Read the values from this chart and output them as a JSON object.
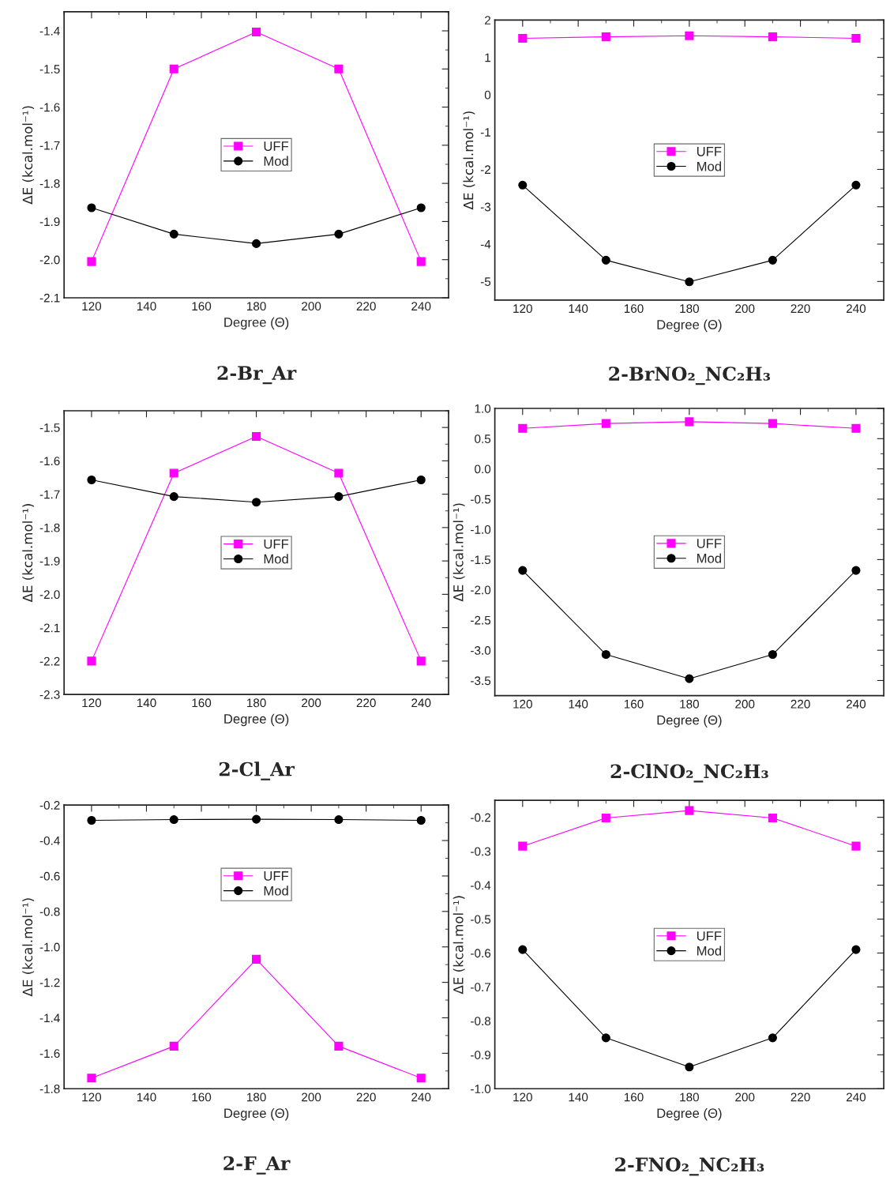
{
  "chart_data": [
    {
      "type": "line",
      "title": "2-Br_Ar",
      "xlabel": "Degree (Θ)",
      "ylabel": "ΔE (kcal.mol⁻¹)",
      "x": [
        120,
        150,
        180,
        210,
        240
      ],
      "xlim": [
        110,
        250
      ],
      "xticks": [
        120,
        140,
        160,
        180,
        200,
        220,
        240
      ],
      "ylim": [
        -2.1,
        -1.35
      ],
      "yticks": [
        -2.1,
        {
          "value": -2,
          "label": "-2.0"
        },
        -1.9,
        -1.8,
        -1.7,
        -1.6,
        -1.5,
        -1.4
      ],
      "legend": "center",
      "grid": false,
      "series": [
        {
          "name": "UFF",
          "color": "#ff00ff",
          "marker": "square",
          "values": [
            -2.005,
            -1.5,
            -1.403,
            -1.5,
            -2.005
          ]
        },
        {
          "name": "Mod",
          "color": "#000000",
          "marker": "circle",
          "values": [
            -1.864,
            -1.933,
            -1.958,
            -1.933,
            -1.864
          ]
        }
      ]
    },
    {
      "type": "line",
      "title": "2-BrNO₂_NC₂H₃",
      "xlabel": "Degree (Θ)",
      "ylabel": "ΔE (kcal.mol⁻¹)",
      "x": [
        120,
        150,
        180,
        210,
        240
      ],
      "xlim": [
        110,
        250
      ],
      "xticks": [
        120,
        140,
        160,
        180,
        200,
        220,
        240
      ],
      "ylim": [
        -5.5,
        2
      ],
      "yticks": [
        -5,
        -4,
        -3,
        -2,
        -1,
        0,
        1,
        2
      ],
      "legend": "center",
      "grid": false,
      "series": [
        {
          "name": "UFF",
          "color": "#ff00ff",
          "marker": "square",
          "values": [
            1.51,
            1.55,
            1.58,
            1.55,
            1.51
          ]
        },
        {
          "name": "Mod",
          "color": "#000000",
          "marker": "circle",
          "values": [
            -2.42,
            -4.43,
            -5.01,
            -4.43,
            -2.42
          ]
        }
      ]
    },
    {
      "type": "line",
      "title": "2-Cl_Ar",
      "xlabel": "Degree (Θ)",
      "ylabel": "ΔE (kcal.mol⁻¹)",
      "x": [
        120,
        150,
        180,
        210,
        240
      ],
      "xlim": [
        110,
        250
      ],
      "xticks": [
        120,
        140,
        160,
        180,
        200,
        220,
        240
      ],
      "ylim": [
        -2.3,
        -1.45
      ],
      "yticks": [
        -2.3,
        -2.2,
        -2.1,
        {
          "value": -2,
          "label": "-2.0"
        },
        -1.9,
        -1.8,
        -1.7,
        -1.6,
        -1.5
      ],
      "legend": "center",
      "grid": false,
      "series": [
        {
          "name": "UFF",
          "color": "#ff00ff",
          "marker": "square",
          "values": [
            -2.2,
            -1.637,
            -1.527,
            -1.637,
            -2.2
          ]
        },
        {
          "name": "Mod",
          "color": "#000000",
          "marker": "circle",
          "values": [
            -1.657,
            -1.707,
            -1.724,
            -1.707,
            -1.657
          ]
        }
      ]
    },
    {
      "type": "line",
      "title": "2-ClNO₂_NC₂H₃",
      "xlabel": "Degree (Θ)",
      "ylabel": "ΔE (kcal.mol⁻¹)",
      "x": [
        120,
        150,
        180,
        210,
        240
      ],
      "xlim": [
        110,
        250
      ],
      "xticks": [
        120,
        140,
        160,
        180,
        200,
        220,
        240
      ],
      "ylim": [
        -3.75,
        1.0
      ],
      "yticks": [
        -3.5,
        {
          "value": -3,
          "label": "-3.0"
        },
        -2.5,
        {
          "value": -2,
          "label": "-2.0"
        },
        -1.5,
        {
          "value": -1,
          "label": "-1.0"
        },
        -0.5,
        {
          "value": 0,
          "label": "0.0"
        },
        0.5,
        {
          "value": 1,
          "label": "1.0"
        }
      ],
      "legend": "center",
      "grid": false,
      "series": [
        {
          "name": "UFF",
          "color": "#ff00ff",
          "marker": "square",
          "values": [
            0.67,
            0.75,
            0.78,
            0.75,
            0.67
          ]
        },
        {
          "name": "Mod",
          "color": "#000000",
          "marker": "circle",
          "values": [
            -1.68,
            -3.07,
            -3.47,
            -3.07,
            -1.68
          ]
        }
      ]
    },
    {
      "type": "line",
      "title": "2-F_Ar",
      "xlabel": "Degree (Θ)",
      "ylabel": "ΔE (kcal.mol⁻¹)",
      "x": [
        120,
        150,
        180,
        210,
        240
      ],
      "xlim": [
        110,
        250
      ],
      "xticks": [
        120,
        140,
        160,
        180,
        200,
        220,
        240
      ],
      "ylim": [
        -1.8,
        -0.2
      ],
      "yticks": [
        -1.8,
        -1.6,
        -1.4,
        -1.2,
        {
          "value": -1,
          "label": "-1.0"
        },
        -0.8,
        -0.6,
        -0.4,
        -0.2
      ],
      "legend": "top",
      "grid": false,
      "series": [
        {
          "name": "UFF",
          "color": "#ff00ff",
          "marker": "square",
          "values": [
            -1.74,
            -1.56,
            -1.07,
            -1.56,
            -1.74
          ]
        },
        {
          "name": "Mod",
          "color": "#000000",
          "marker": "circle",
          "values": [
            -0.286,
            -0.282,
            -0.28,
            -0.282,
            -0.286
          ]
        }
      ]
    },
    {
      "type": "line",
      "title": "2-FNO₂_NC₂H₃",
      "xlabel": "Degree (Θ)",
      "ylabel": "ΔE (kcal.mol⁻¹)",
      "x": [
        120,
        150,
        180,
        210,
        240
      ],
      "xlim": [
        110,
        250
      ],
      "xticks": [
        120,
        140,
        160,
        180,
        200,
        220,
        240
      ],
      "ylim": [
        -1.0,
        -0.15
      ],
      "yticks": [
        {
          "value": -1,
          "label": "-1.0"
        },
        -0.9,
        -0.8,
        -0.7,
        -0.6,
        -0.5,
        -0.4,
        -0.3,
        -0.2
      ],
      "legend": "center",
      "grid": false,
      "series": [
        {
          "name": "UFF",
          "color": "#ff00ff",
          "marker": "square",
          "values": [
            -0.285,
            -0.202,
            -0.18,
            -0.202,
            -0.285
          ]
        },
        {
          "name": "Mod",
          "color": "#000000",
          "marker": "circle",
          "values": [
            -0.59,
            -0.85,
            -0.936,
            -0.85,
            -0.59
          ]
        }
      ]
    }
  ]
}
